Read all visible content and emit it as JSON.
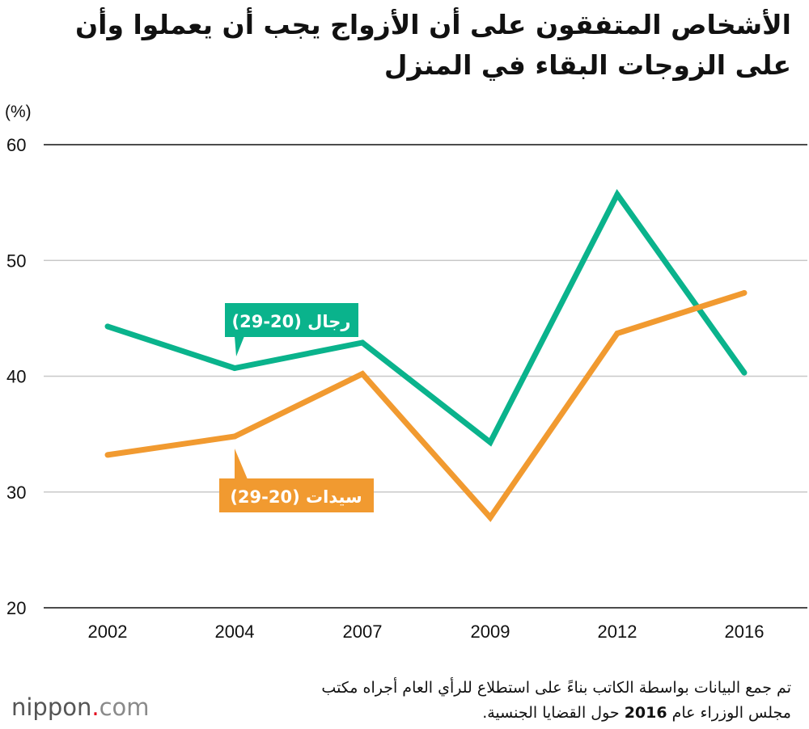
{
  "chart_data": {
    "type": "line",
    "title": "الأشخاص المتفقون على أن الأزواج يجب أن يعملوا وأن على الزوجات البقاء في المنزل",
    "ylabel": "(%)",
    "xlabel": "",
    "categories": [
      "2002",
      "2004",
      "2007",
      "2009",
      "2012",
      "2016"
    ],
    "ylim": [
      20,
      60
    ],
    "yticks": [
      20,
      30,
      40,
      50,
      60
    ],
    "grid": true,
    "series": [
      {
        "name": "رجال (20-29)",
        "color": "#0ab38c",
        "values": [
          44.3,
          40.7,
          42.9,
          34.3,
          55.7,
          40.3
        ]
      },
      {
        "name": "سيدات (20-29)",
        "color": "#f19a30",
        "values": [
          33.2,
          34.8,
          40.2,
          27.8,
          43.7,
          47.2
        ]
      }
    ]
  },
  "footnote": {
    "line1": "تم جمع البيانات بواسطة الكاتب بناءً على استطلاع للرأي العام أجراه مكتب",
    "line2_before": "مجلس الوزراء عام ",
    "line2_year": "2016",
    "line2_after": " حول القضايا الجنسية."
  },
  "brand": {
    "name": "nippon",
    "dot": ".",
    "suffix": "com"
  }
}
